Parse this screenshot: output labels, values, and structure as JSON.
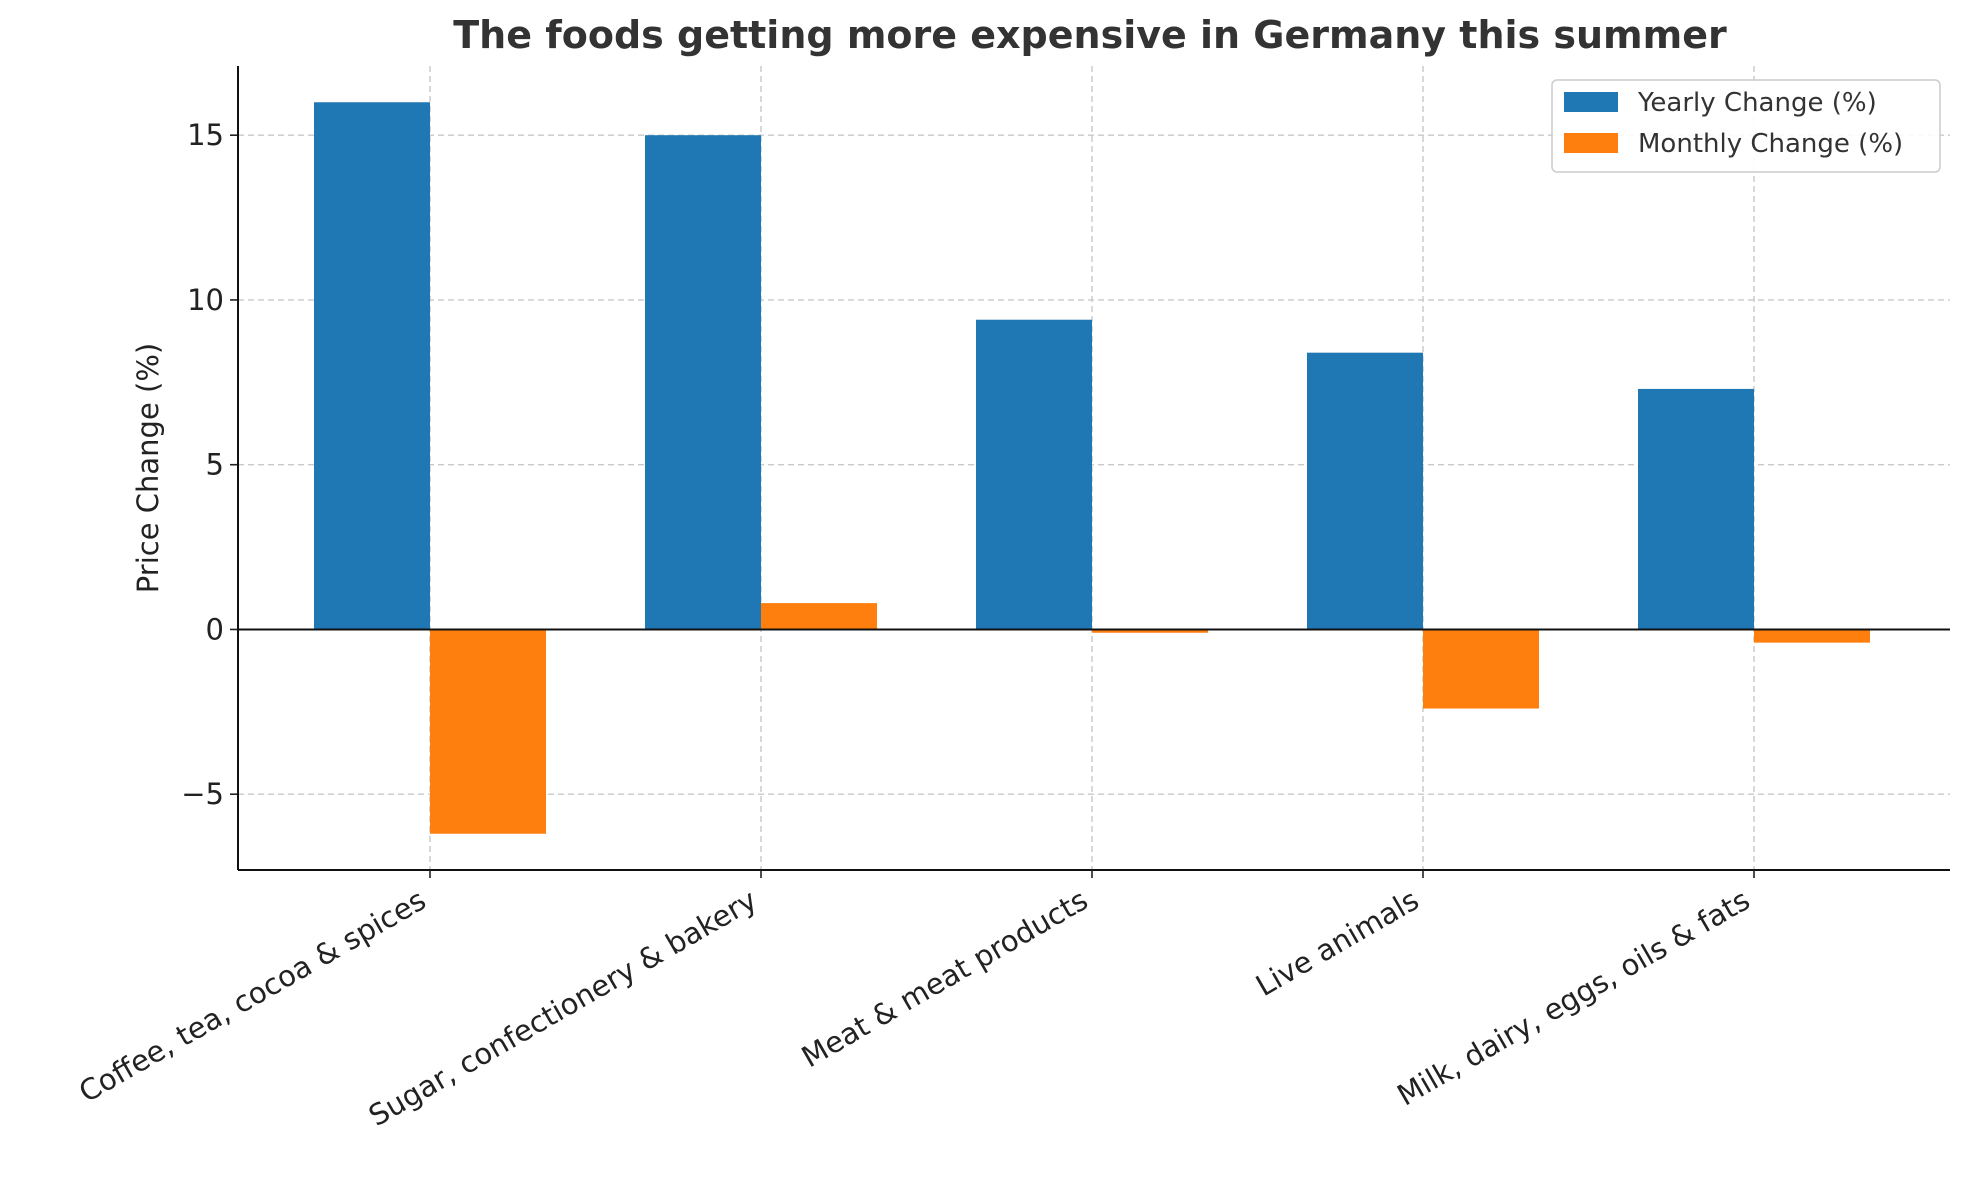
{
  "chart_data": {
    "type": "bar",
    "title": "The foods getting more expensive in Germany this summer",
    "xlabel": "",
    "ylabel": "Price Change (%)",
    "categories": [
      "Coffee, tea, cocoa & spices",
      "Sugar, confectionery & bakery",
      "Meat & meat products",
      "Live animals",
      "Milk, dairy, eggs, oils & fats"
    ],
    "series": [
      {
        "name": "Yearly Change (%)",
        "color": "#1f77b4",
        "values": [
          16.0,
          15.0,
          9.4,
          8.4,
          7.3
        ]
      },
      {
        "name": "Monthly Change (%)",
        "color": "#ff7f0e",
        "values": [
          -6.2,
          0.8,
          -0.1,
          -2.4,
          -0.4
        ]
      }
    ],
    "ylim": [
      -7.3,
      17.1
    ],
    "yticks": [
      15,
      10,
      5,
      0,
      -5
    ],
    "ytick_labels": [
      "15",
      "10",
      "5",
      "0",
      "−5"
    ],
    "grid": true,
    "legend_position": "top-right"
  }
}
